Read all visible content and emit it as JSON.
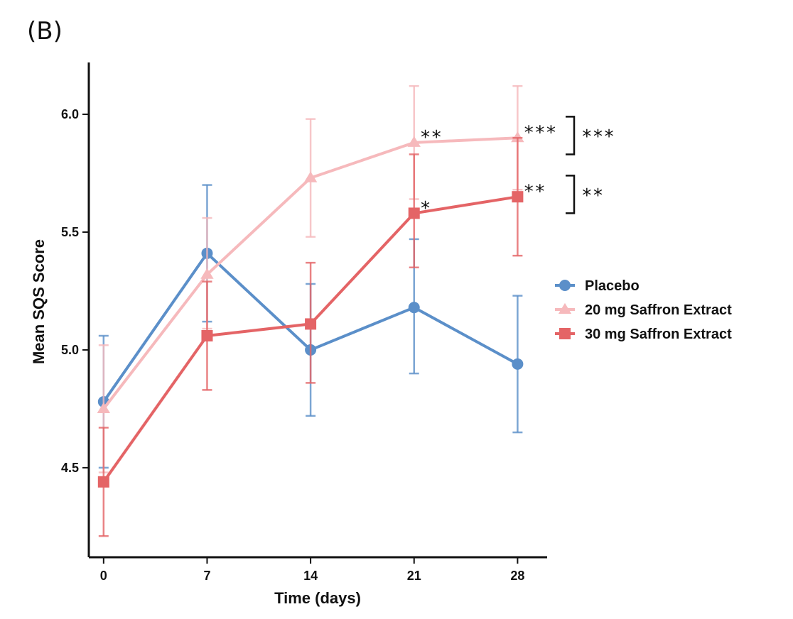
{
  "panel_label": "(B)",
  "chart_data": {
    "type": "line",
    "xlabel": "Time (days)",
    "ylabel": "Mean SQS Score",
    "x": [
      0,
      7,
      14,
      21,
      28
    ],
    "xlim": [
      -1,
      30
    ],
    "ylim": [
      4.12,
      6.22
    ],
    "xticks": [
      "0",
      "7",
      "14",
      "21",
      "28"
    ],
    "yticks": [
      "4.5",
      "5.0",
      "5.5",
      "6.0"
    ],
    "legend_position": "right",
    "series": [
      {
        "name": "Placebo",
        "color": "#5b8fc9",
        "marker": "circle",
        "values": [
          4.78,
          5.41,
          5.0,
          5.18,
          4.94
        ],
        "err_low": [
          4.5,
          5.12,
          4.72,
          4.9,
          4.65
        ],
        "err_high": [
          5.06,
          5.7,
          5.28,
          5.47,
          5.23
        ]
      },
      {
        "name": "20 mg Saffron Extract",
        "color": "#f6b9bc",
        "marker": "triangle",
        "values": [
          4.75,
          5.32,
          5.73,
          5.88,
          5.9
        ],
        "err_low": [
          4.48,
          5.09,
          5.48,
          5.64,
          5.68
        ],
        "err_high": [
          5.02,
          5.56,
          5.98,
          6.12,
          6.12
        ]
      },
      {
        "name": "30 mg Saffron Extract",
        "color": "#e46466",
        "marker": "square",
        "values": [
          4.44,
          5.06,
          5.11,
          5.58,
          5.65
        ],
        "err_low": [
          4.21,
          4.83,
          4.86,
          5.35,
          5.4
        ],
        "err_high": [
          4.67,
          5.29,
          5.37,
          5.83,
          5.9
        ]
      }
    ],
    "annotations": [
      {
        "text": "**",
        "x": 21,
        "y": 5.9
      },
      {
        "text": "***",
        "x": 28,
        "y": 5.92
      },
      {
        "text": "*",
        "x": 21,
        "y": 5.6
      },
      {
        "text": "**",
        "x": 28,
        "y": 5.67
      }
    ],
    "brackets": [
      {
        "text": "***",
        "y_low": 5.83,
        "y_high": 5.99
      },
      {
        "text": "**",
        "y_low": 5.58,
        "y_high": 5.74
      }
    ]
  }
}
